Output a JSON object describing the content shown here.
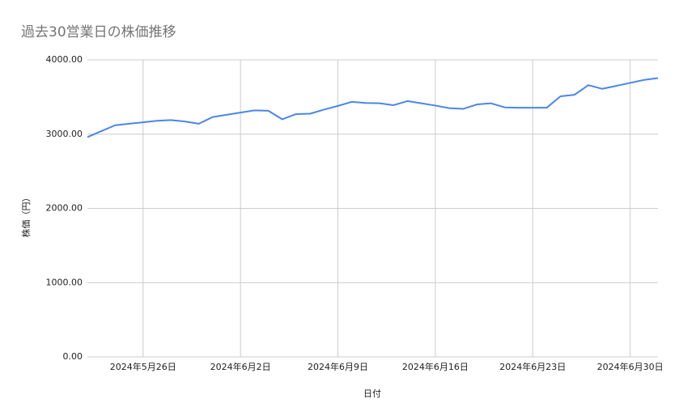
{
  "chart_data": {
    "type": "line",
    "title": "過去30営業日の株価推移",
    "x_label": "日付",
    "y_label": "株価（円）",
    "x": [
      "2024-05-22",
      "2024-05-23",
      "2024-05-24",
      "2024-05-25",
      "2024-05-26",
      "2024-05-27",
      "2024-05-28",
      "2024-05-29",
      "2024-05-30",
      "2024-05-31",
      "2024-06-01",
      "2024-06-02",
      "2024-06-03",
      "2024-06-04",
      "2024-06-05",
      "2024-06-06",
      "2024-06-07",
      "2024-06-08",
      "2024-06-09",
      "2024-06-10",
      "2024-06-11",
      "2024-06-12",
      "2024-06-13",
      "2024-06-14",
      "2024-06-15",
      "2024-06-16",
      "2024-06-17",
      "2024-06-18",
      "2024-06-19",
      "2024-06-20",
      "2024-06-21",
      "2024-06-22",
      "2024-06-23",
      "2024-06-24",
      "2024-06-25",
      "2024-06-26",
      "2024-06-27",
      "2024-06-28",
      "2024-06-29",
      "2024-06-30",
      "2024-07-01",
      "2024-07-02"
    ],
    "series": [
      {
        "color": "#4a86e8",
        "values": [
          2960,
          3040,
          3120,
          3140,
          3160,
          3180,
          3190,
          3170,
          3140,
          3230,
          3260,
          3290,
          3320,
          3315,
          3200,
          3270,
          3275,
          3330,
          3380,
          3435,
          3420,
          3415,
          3390,
          3445,
          3415,
          3385,
          3350,
          3340,
          3400,
          3415,
          3360,
          3355,
          3355,
          3355,
          3510,
          3530,
          3660,
          3610,
          3650,
          3690,
          3730,
          3755
        ]
      }
    ],
    "xlim": [
      "2024-05-22",
      "2024-07-02"
    ],
    "xticks": [
      {
        "value": "2024-05-26",
        "label": "2024年5月26日"
      },
      {
        "value": "2024-06-02",
        "label": "2024年6月2日"
      },
      {
        "value": "2024-06-09",
        "label": "2024年6月9日"
      },
      {
        "value": "2024-06-16",
        "label": "2024年6月16日"
      },
      {
        "value": "2024-06-23",
        "label": "2024年6月23日"
      },
      {
        "value": "2024-06-30",
        "label": "2024年6月30日"
      }
    ],
    "ylim": [
      0,
      4000
    ],
    "yticks": [
      {
        "value": 0,
        "label": "0.00"
      },
      {
        "value": 1000,
        "label": "1000.00"
      },
      {
        "value": 2000,
        "label": "2000.00"
      },
      {
        "value": 3000,
        "label": "3000.00"
      },
      {
        "value": 4000,
        "label": "4000.00"
      }
    ],
    "grid": true
  }
}
